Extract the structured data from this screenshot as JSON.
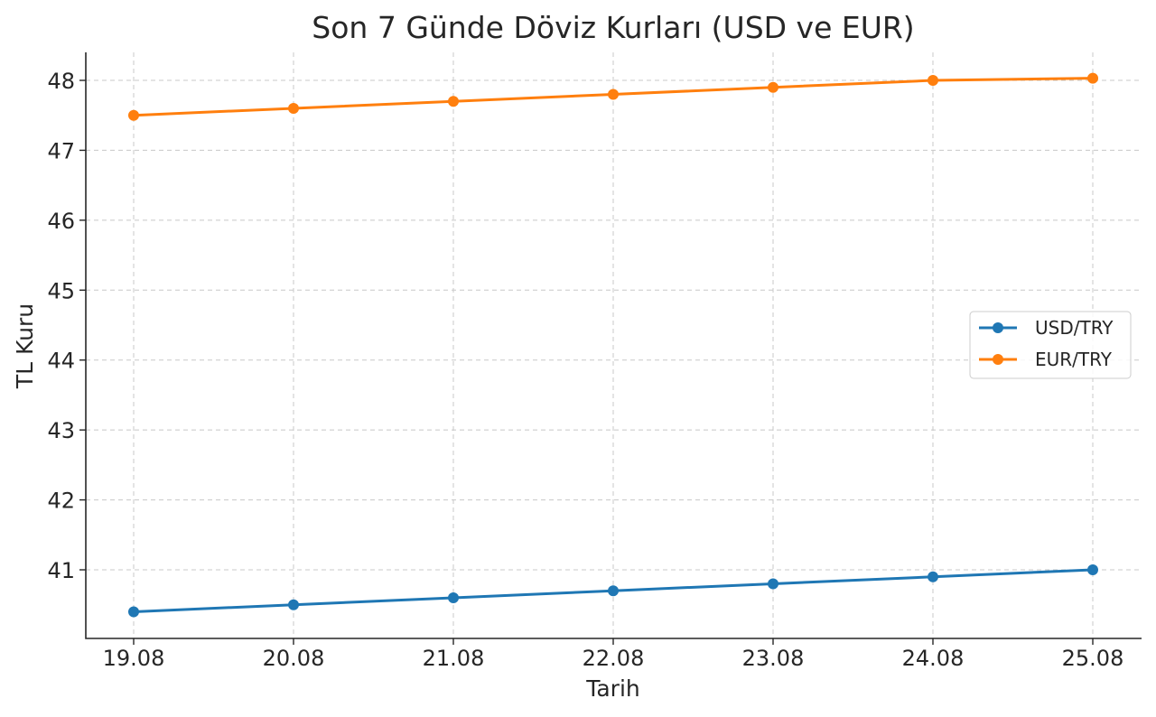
{
  "chart_data": {
    "type": "line",
    "title": "Son 7 Günde Döviz Kurları (USD ve EUR)",
    "xlabel": "Tarih",
    "ylabel": "TL Kuru",
    "categories": [
      "19.08",
      "20.08",
      "21.08",
      "22.08",
      "23.08",
      "24.08",
      "25.08"
    ],
    "yticks": [
      41,
      42,
      43,
      44,
      45,
      46,
      47,
      48
    ],
    "ylim": [
      40.2,
      48.4
    ],
    "grid": true,
    "legend_position": "right",
    "series": [
      {
        "name": "USD/TRY",
        "color": "#1f77b4",
        "values": [
          40.4,
          40.5,
          40.6,
          40.7,
          40.8,
          40.9,
          41.0
        ]
      },
      {
        "name": "EUR/TRY",
        "color": "#ff7f0e",
        "values": [
          47.5,
          47.6,
          47.7,
          47.8,
          47.9,
          48.0,
          48.03
        ]
      }
    ]
  }
}
